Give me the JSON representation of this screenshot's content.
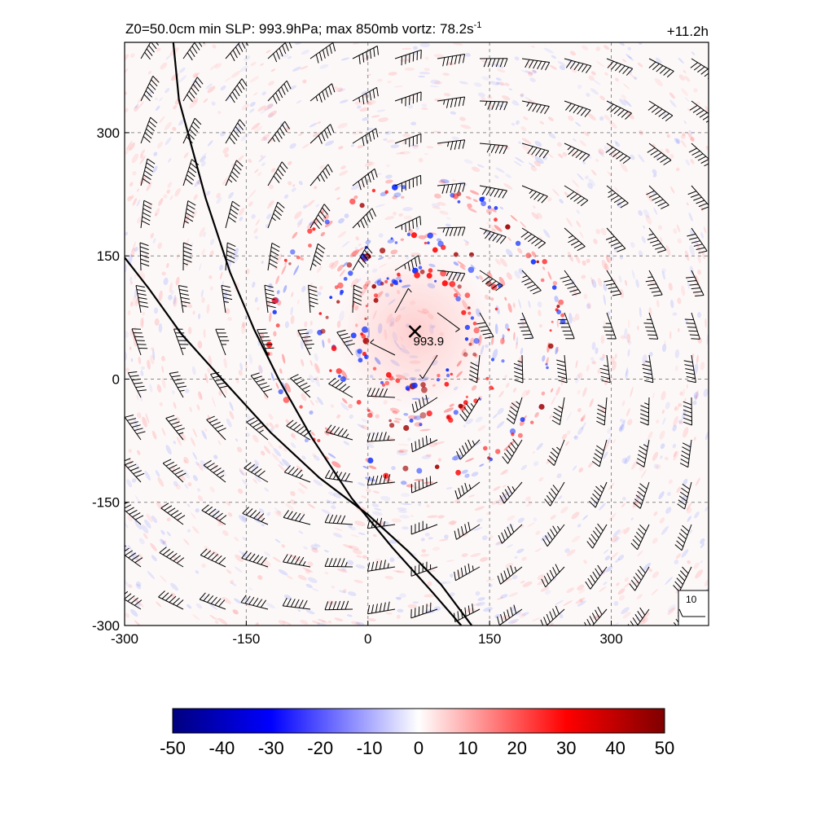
{
  "chart_data": {
    "type": "heatmap",
    "title": "Z0=50.0cm  min SLP: 993.9hPa; max 850mb vortz:  78.2s",
    "title_superscript": "-1",
    "time_label": "+11.2h",
    "xlim": [
      -300,
      420
    ],
    "ylim": [
      -300,
      410
    ],
    "x_ticks": [
      -300,
      -150,
      0,
      150,
      300
    ],
    "y_ticks": [
      300,
      150,
      0,
      -150,
      -300
    ],
    "grid": "dashed",
    "colorbar": {
      "ticks": [
        -50,
        -40,
        -30,
        -20,
        -10,
        0,
        10,
        20,
        30,
        40,
        50
      ],
      "range": [
        -50,
        50
      ],
      "colors": [
        "#00007f",
        "#0000ff",
        "#ffffff",
        "#ff0000",
        "#7f0000"
      ]
    },
    "storm_center": {
      "x": 58,
      "y": 58,
      "label": "993.9"
    },
    "ring_radii_km": [
      70,
      110,
      175
    ],
    "coastlines": [
      [
        [
          -240,
          410
        ],
        [
          -233,
          340
        ],
        [
          -222,
          300
        ],
        [
          -200,
          220
        ],
        [
          -170,
          130
        ],
        [
          -140,
          60
        ],
        [
          -110,
          0
        ],
        [
          -70,
          -70
        ],
        [
          -20,
          -145
        ],
        [
          30,
          -205
        ],
        [
          80,
          -260
        ],
        [
          115,
          -300
        ]
      ],
      [
        [
          -300,
          148
        ],
        [
          -270,
          110
        ],
        [
          -230,
          55
        ],
        [
          -180,
          0
        ],
        [
          -120,
          -65
        ],
        [
          -60,
          -120
        ],
        [
          0,
          -165
        ],
        [
          50,
          -210
        ],
        [
          90,
          -250
        ],
        [
          128,
          -300
        ]
      ]
    ],
    "barb_reference": {
      "label": "10"
    }
  },
  "colors": {
    "line": "#000000",
    "grid": "#8a8a8a",
    "center_label": "#555555"
  }
}
